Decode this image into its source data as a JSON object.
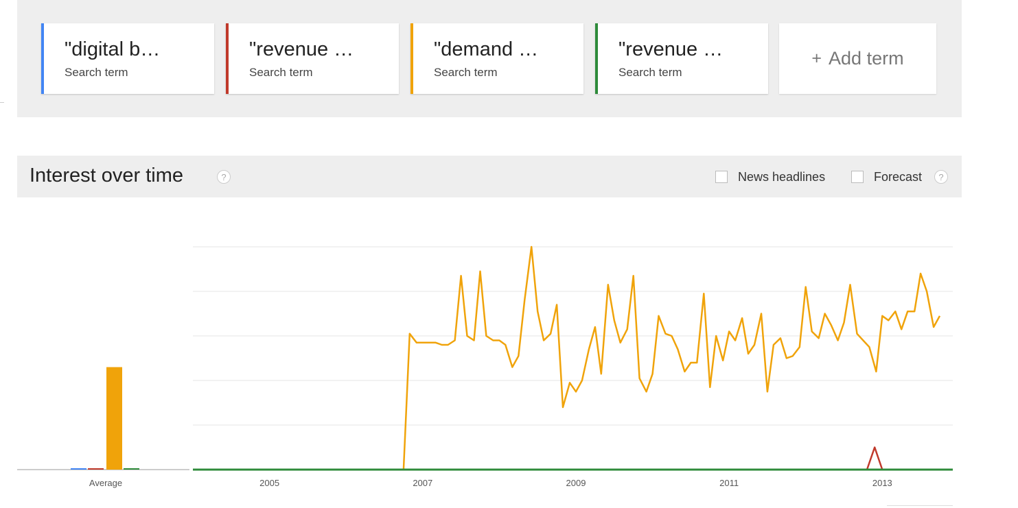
{
  "terms": [
    {
      "label": "\"digital b…",
      "type": "Search term",
      "color": "#4285f4"
    },
    {
      "label": "\"revenue …",
      "type": "Search term",
      "color": "#c0392b"
    },
    {
      "label": "\"demand …",
      "type": "Search term",
      "color": "#f0a30a"
    },
    {
      "label": "\"revenue …",
      "type": "Search term",
      "color": "#2e8b3a"
    }
  ],
  "add_term": {
    "icon": "plus-icon",
    "label": "Add term"
  },
  "interest": {
    "title": "Interest over time",
    "news_headlines_label": "News headlines",
    "news_headlines_checked": false,
    "forecast_label": "Forecast",
    "forecast_checked": false
  },
  "chart_data": {
    "type": "line",
    "average_label": "Average",
    "x_ticks": [
      "2005",
      "2007",
      "2009",
      "2011",
      "2013"
    ],
    "x_range": [
      2004.0,
      2013.92
    ],
    "y_range": [
      0,
      100
    ],
    "grid": true,
    "averages": [
      {
        "series": "\"digital b…",
        "value": 0.6
      },
      {
        "series": "\"revenue …",
        "value": 0.6
      },
      {
        "series": "\"demand …",
        "value": 46
      },
      {
        "series": "\"revenue … (green)",
        "value": 0.6
      }
    ],
    "series": [
      {
        "name": "\"digital b…",
        "color": "#4285f4",
        "points": [
          [
            2004.0,
            0
          ],
          [
            2013.92,
            0
          ]
        ]
      },
      {
        "name": "\"revenue …",
        "color": "#c0392b",
        "points": [
          [
            2004.0,
            0
          ],
          [
            2012.8,
            0
          ],
          [
            2012.9,
            10
          ],
          [
            2013.0,
            0
          ],
          [
            2013.92,
            0
          ]
        ]
      },
      {
        "name": "\"demand …",
        "color": "#f0a30a",
        "points": [
          [
            2004.0,
            0
          ],
          [
            2006.75,
            0
          ],
          [
            2006.83,
            61
          ],
          [
            2006.92,
            57
          ],
          [
            2007.0,
            57
          ],
          [
            2007.08,
            57
          ],
          [
            2007.17,
            57
          ],
          [
            2007.25,
            56
          ],
          [
            2007.33,
            56
          ],
          [
            2007.42,
            58
          ],
          [
            2007.5,
            87
          ],
          [
            2007.58,
            60
          ],
          [
            2007.67,
            58
          ],
          [
            2007.75,
            89
          ],
          [
            2007.83,
            60
          ],
          [
            2007.92,
            58
          ],
          [
            2008.0,
            58
          ],
          [
            2008.08,
            56
          ],
          [
            2008.17,
            46
          ],
          [
            2008.25,
            51
          ],
          [
            2008.33,
            76
          ],
          [
            2008.42,
            100
          ],
          [
            2008.5,
            71
          ],
          [
            2008.58,
            58
          ],
          [
            2008.67,
            61
          ],
          [
            2008.75,
            74
          ],
          [
            2008.83,
            28
          ],
          [
            2008.92,
            39
          ],
          [
            2009.0,
            35
          ],
          [
            2009.08,
            40
          ],
          [
            2009.17,
            54
          ],
          [
            2009.25,
            64
          ],
          [
            2009.33,
            43
          ],
          [
            2009.42,
            83
          ],
          [
            2009.5,
            67
          ],
          [
            2009.58,
            57
          ],
          [
            2009.67,
            63
          ],
          [
            2009.75,
            87
          ],
          [
            2009.83,
            41
          ],
          [
            2009.92,
            35
          ],
          [
            2010.0,
            43
          ],
          [
            2010.08,
            69
          ],
          [
            2010.17,
            61
          ],
          [
            2010.25,
            60
          ],
          [
            2010.33,
            54
          ],
          [
            2010.42,
            44
          ],
          [
            2010.5,
            48
          ],
          [
            2010.58,
            48
          ],
          [
            2010.67,
            79
          ],
          [
            2010.75,
            37
          ],
          [
            2010.83,
            60
          ],
          [
            2010.92,
            49
          ],
          [
            2011.0,
            62
          ],
          [
            2011.08,
            58
          ],
          [
            2011.17,
            68
          ],
          [
            2011.25,
            52
          ],
          [
            2011.33,
            56
          ],
          [
            2011.42,
            70
          ],
          [
            2011.5,
            35
          ],
          [
            2011.58,
            56
          ],
          [
            2011.67,
            59
          ],
          [
            2011.75,
            50
          ],
          [
            2011.83,
            51
          ],
          [
            2011.92,
            55
          ],
          [
            2012.0,
            82
          ],
          [
            2012.08,
            62
          ],
          [
            2012.17,
            59
          ],
          [
            2012.25,
            70
          ],
          [
            2012.33,
            65
          ],
          [
            2012.42,
            58
          ],
          [
            2012.5,
            66
          ],
          [
            2012.58,
            83
          ],
          [
            2012.67,
            61
          ],
          [
            2012.75,
            58
          ],
          [
            2012.83,
            55
          ],
          [
            2012.92,
            44
          ],
          [
            2013.0,
            69
          ],
          [
            2013.08,
            67
          ],
          [
            2013.17,
            71
          ],
          [
            2013.25,
            63
          ],
          [
            2013.33,
            71
          ],
          [
            2013.42,
            71
          ],
          [
            2013.5,
            88
          ],
          [
            2013.58,
            80
          ],
          [
            2013.67,
            64
          ],
          [
            2013.75,
            69
          ]
        ]
      },
      {
        "name": "\"revenue … (green)",
        "color": "#2e8b3a",
        "points": [
          [
            2004.0,
            0
          ],
          [
            2013.92,
            0
          ]
        ]
      }
    ]
  }
}
